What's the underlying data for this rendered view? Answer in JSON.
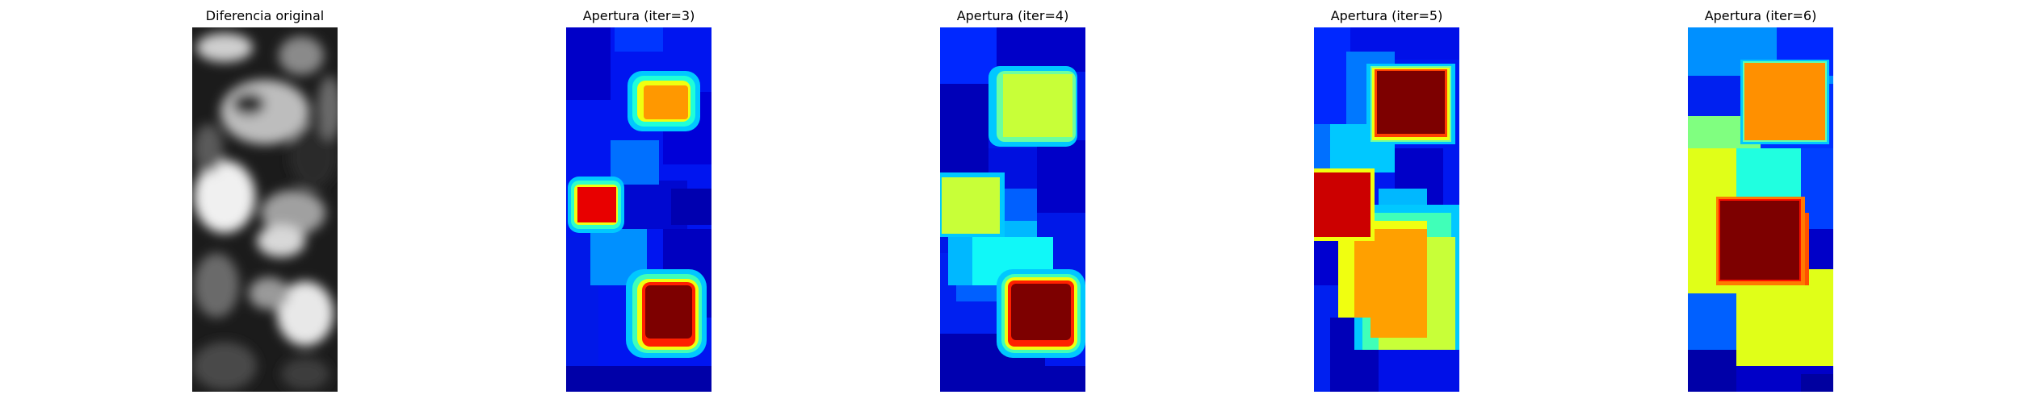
{
  "figure": {
    "panels": [
      {
        "title": "Diferencia original",
        "colormap": "gray"
      },
      {
        "title": "Apertura (iter=3)",
        "colormap": "jet"
      },
      {
        "title": "Apertura (iter=4)",
        "colormap": "jet"
      },
      {
        "title": "Apertura (iter=5)",
        "colormap": "jet"
      },
      {
        "title": "Apertura (iter=6)",
        "colormap": "jet"
      }
    ]
  }
}
